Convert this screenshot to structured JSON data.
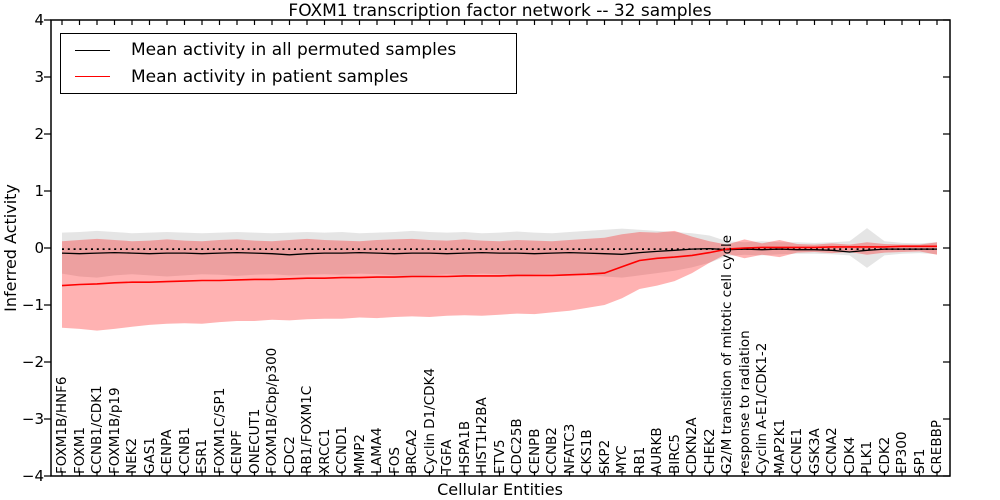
{
  "chart_data": {
    "type": "line",
    "title": "FOXM1 transcription factor network -- 32 samples",
    "xlabel": "Cellular Entities",
    "ylabel": "Inferred Activity",
    "ylim": [
      -4,
      4
    ],
    "grid": false,
    "legend_position": "upper left",
    "yticks": {
      "values": [
        4,
        3,
        2,
        1,
        0,
        -1,
        -2,
        -3,
        -4
      ],
      "labels": [
        "4",
        "3",
        "2",
        "1",
        "0",
        "−1",
        "−2",
        "−3",
        "−4"
      ]
    },
    "categories": [
      "FOXM1B/HNF6",
      "FOXM1",
      "CCNB1/CDK1",
      "FOXM1B/p19",
      "NEK2",
      "GAS1",
      "CENPA",
      "CCNB1",
      "ESR1",
      "FOXM1C/SP1",
      "CENPF",
      "ONECUT1",
      "FOXM1B/Cbp/p300",
      "CDC2",
      "RB1/FOXM1C",
      "XRCC1",
      "CCND1",
      "MMP2",
      "LAMA4",
      "FOS",
      "BRCA2",
      "Cyclin D1/CDK4",
      "TGFA",
      "HSPA1B",
      "HIST1H2BA",
      "ETV5",
      "CDC25B",
      "CENPB",
      "CCNB2",
      "NFATC3",
      "CKS1B",
      "SKP2",
      "MYC",
      "RB1",
      "AURKB",
      "BIRC5",
      "CDKN2A",
      "CHEK2",
      "G2/M transition of mitotic cell cycle",
      "response to radiation",
      "Cyclin A-E1/CDK1-2",
      "MAP2K1",
      "CCNE1",
      "GSK3A",
      "CCNA2",
      "CDK4",
      "PLK1",
      "CDK2",
      "EP300",
      "SP1",
      "CREBBP"
    ],
    "legend": [
      {
        "label": "Mean activity in all permuted samples",
        "color": "#000000"
      },
      {
        "label": "Mean activity in patient samples",
        "color": "#ff0000"
      }
    ],
    "reference_line": {
      "style": "dotted",
      "color": "#000000",
      "value": -0.02
    },
    "series": [
      {
        "name": "Mean activity in all permuted samples",
        "color": "#000000",
        "values": [
          -0.09,
          -0.1,
          -0.09,
          -0.08,
          -0.09,
          -0.1,
          -0.09,
          -0.09,
          -0.1,
          -0.09,
          -0.08,
          -0.09,
          -0.1,
          -0.12,
          -0.1,
          -0.09,
          -0.09,
          -0.08,
          -0.09,
          -0.1,
          -0.09,
          -0.09,
          -0.1,
          -0.09,
          -0.08,
          -0.09,
          -0.09,
          -0.1,
          -0.09,
          -0.08,
          -0.09,
          -0.1,
          -0.11,
          -0.08,
          -0.06,
          -0.04,
          -0.02,
          -0.01,
          -0.03,
          -0.02,
          -0.03,
          -0.02,
          -0.03,
          -0.03,
          -0.04,
          -0.07,
          -0.04,
          -0.02,
          -0.02,
          -0.02,
          -0.02
        ]
      },
      {
        "name": "Mean activity in patient samples",
        "color": "#ff0000",
        "values": [
          -0.66,
          -0.64,
          -0.63,
          -0.61,
          -0.6,
          -0.6,
          -0.59,
          -0.58,
          -0.57,
          -0.57,
          -0.56,
          -0.55,
          -0.55,
          -0.54,
          -0.53,
          -0.53,
          -0.52,
          -0.52,
          -0.51,
          -0.51,
          -0.5,
          -0.5,
          -0.5,
          -0.49,
          -0.49,
          -0.49,
          -0.48,
          -0.48,
          -0.48,
          -0.47,
          -0.46,
          -0.44,
          -0.33,
          -0.22,
          -0.18,
          -0.16,
          -0.13,
          -0.08,
          -0.02,
          0.0,
          0.01,
          0.01,
          0.01,
          0.01,
          0.02,
          0.02,
          0.02,
          0.02,
          0.03,
          0.03,
          0.03
        ]
      }
    ],
    "bands": [
      {
        "name": "permuted samples range",
        "color": "rgba(0,0,0,0.10)",
        "upper": [
          0.27,
          0.28,
          0.3,
          0.28,
          0.26,
          0.27,
          0.28,
          0.27,
          0.26,
          0.27,
          0.28,
          0.27,
          0.26,
          0.27,
          0.28,
          0.27,
          0.28,
          0.26,
          0.27,
          0.28,
          0.3,
          0.28,
          0.27,
          0.28,
          0.26,
          0.27,
          0.29,
          0.27,
          0.26,
          0.28,
          0.3,
          0.32,
          0.34,
          0.32,
          0.3,
          0.28,
          0.26,
          0.22,
          0.12,
          0.1,
          0.12,
          0.1,
          0.1,
          0.09,
          0.1,
          0.12,
          0.35,
          0.12,
          0.09,
          0.08,
          0.1
        ],
        "lower": [
          -0.45,
          -0.5,
          -0.52,
          -0.48,
          -0.46,
          -0.48,
          -0.5,
          -0.48,
          -0.46,
          -0.47,
          -0.49,
          -0.47,
          -0.46,
          -0.48,
          -0.47,
          -0.46,
          -0.47,
          -0.45,
          -0.46,
          -0.48,
          -0.5,
          -0.48,
          -0.46,
          -0.47,
          -0.45,
          -0.46,
          -0.48,
          -0.46,
          -0.45,
          -0.47,
          -0.48,
          -0.5,
          -0.52,
          -0.48,
          -0.44,
          -0.4,
          -0.34,
          -0.26,
          -0.14,
          -0.12,
          -0.13,
          -0.11,
          -0.1,
          -0.1,
          -0.11,
          -0.13,
          -0.35,
          -0.13,
          -0.1,
          -0.09,
          -0.11
        ]
      },
      {
        "name": "patient samples range",
        "color": "rgba(255,0,0,0.30)",
        "upper": [
          0.12,
          0.14,
          0.16,
          0.14,
          0.12,
          0.13,
          0.15,
          0.13,
          0.12,
          0.14,
          0.15,
          0.13,
          0.12,
          0.14,
          0.16,
          0.14,
          0.13,
          0.12,
          0.14,
          0.15,
          0.16,
          0.14,
          0.13,
          0.15,
          0.13,
          0.12,
          0.14,
          0.13,
          0.12,
          0.14,
          0.16,
          0.18,
          0.24,
          0.28,
          0.27,
          0.3,
          0.2,
          0.12,
          0.06,
          0.15,
          0.08,
          0.14,
          0.07,
          0.06,
          0.08,
          0.06,
          0.1,
          0.07,
          0.06,
          0.06,
          0.1
        ],
        "lower": [
          -1.4,
          -1.42,
          -1.45,
          -1.42,
          -1.38,
          -1.35,
          -1.33,
          -1.32,
          -1.33,
          -1.3,
          -1.28,
          -1.28,
          -1.26,
          -1.27,
          -1.25,
          -1.24,
          -1.24,
          -1.22,
          -1.23,
          -1.21,
          -1.2,
          -1.21,
          -1.19,
          -1.18,
          -1.19,
          -1.17,
          -1.15,
          -1.16,
          -1.13,
          -1.1,
          -1.05,
          -1.0,
          -0.88,
          -0.72,
          -0.66,
          -0.58,
          -0.44,
          -0.26,
          -0.1,
          -0.18,
          -0.12,
          -0.16,
          -0.08,
          -0.07,
          -0.09,
          -0.07,
          -0.12,
          -0.08,
          -0.07,
          -0.06,
          -0.12
        ]
      }
    ]
  }
}
